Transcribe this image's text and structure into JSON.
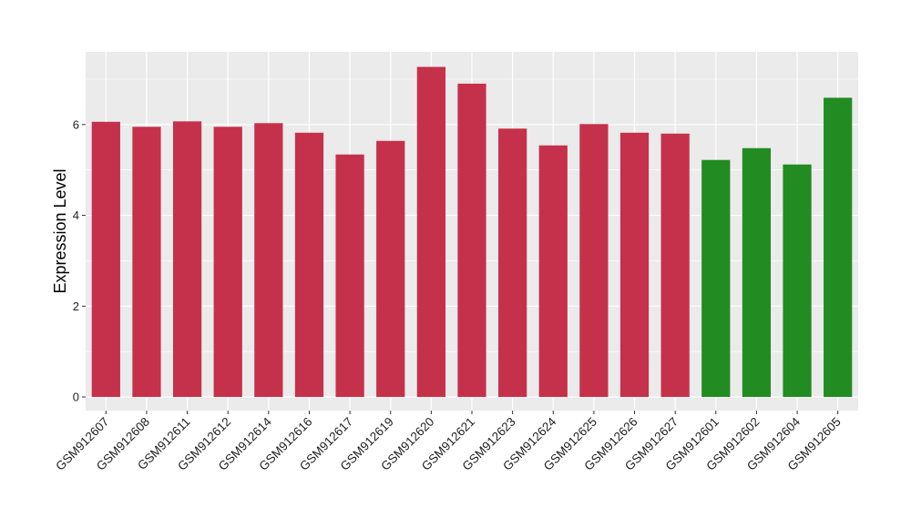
{
  "chart_data": {
    "type": "bar",
    "title": "",
    "xlabel": "",
    "ylabel": "Expression Level",
    "ylim": [
      -0.3,
      7.6
    ],
    "yticks": [
      0,
      2,
      4,
      6
    ],
    "grid": true,
    "categories": [
      "GSM912607",
      "GSM912608",
      "GSM912611",
      "GSM912612",
      "GSM912614",
      "GSM912616",
      "GSM912617",
      "GSM912619",
      "GSM912620",
      "GSM912621",
      "GSM912623",
      "GSM912624",
      "GSM912625",
      "GSM912626",
      "GSM912627",
      "GSM912601",
      "GSM912602",
      "GSM912604",
      "GSM912605"
    ],
    "values": [
      6.06,
      5.95,
      6.07,
      5.95,
      6.03,
      5.82,
      5.34,
      5.64,
      7.27,
      6.9,
      5.91,
      5.54,
      6.01,
      5.82,
      5.8,
      5.22,
      5.48,
      5.12,
      6.59
    ],
    "groups": [
      "a",
      "a",
      "a",
      "a",
      "a",
      "a",
      "a",
      "a",
      "a",
      "a",
      "a",
      "a",
      "a",
      "a",
      "a",
      "b",
      "b",
      "b",
      "b"
    ],
    "colors": {
      "a": "#c5314a",
      "b": "#228b22"
    },
    "panel_background": "#ebebeb",
    "grid_color": "#ffffff"
  }
}
